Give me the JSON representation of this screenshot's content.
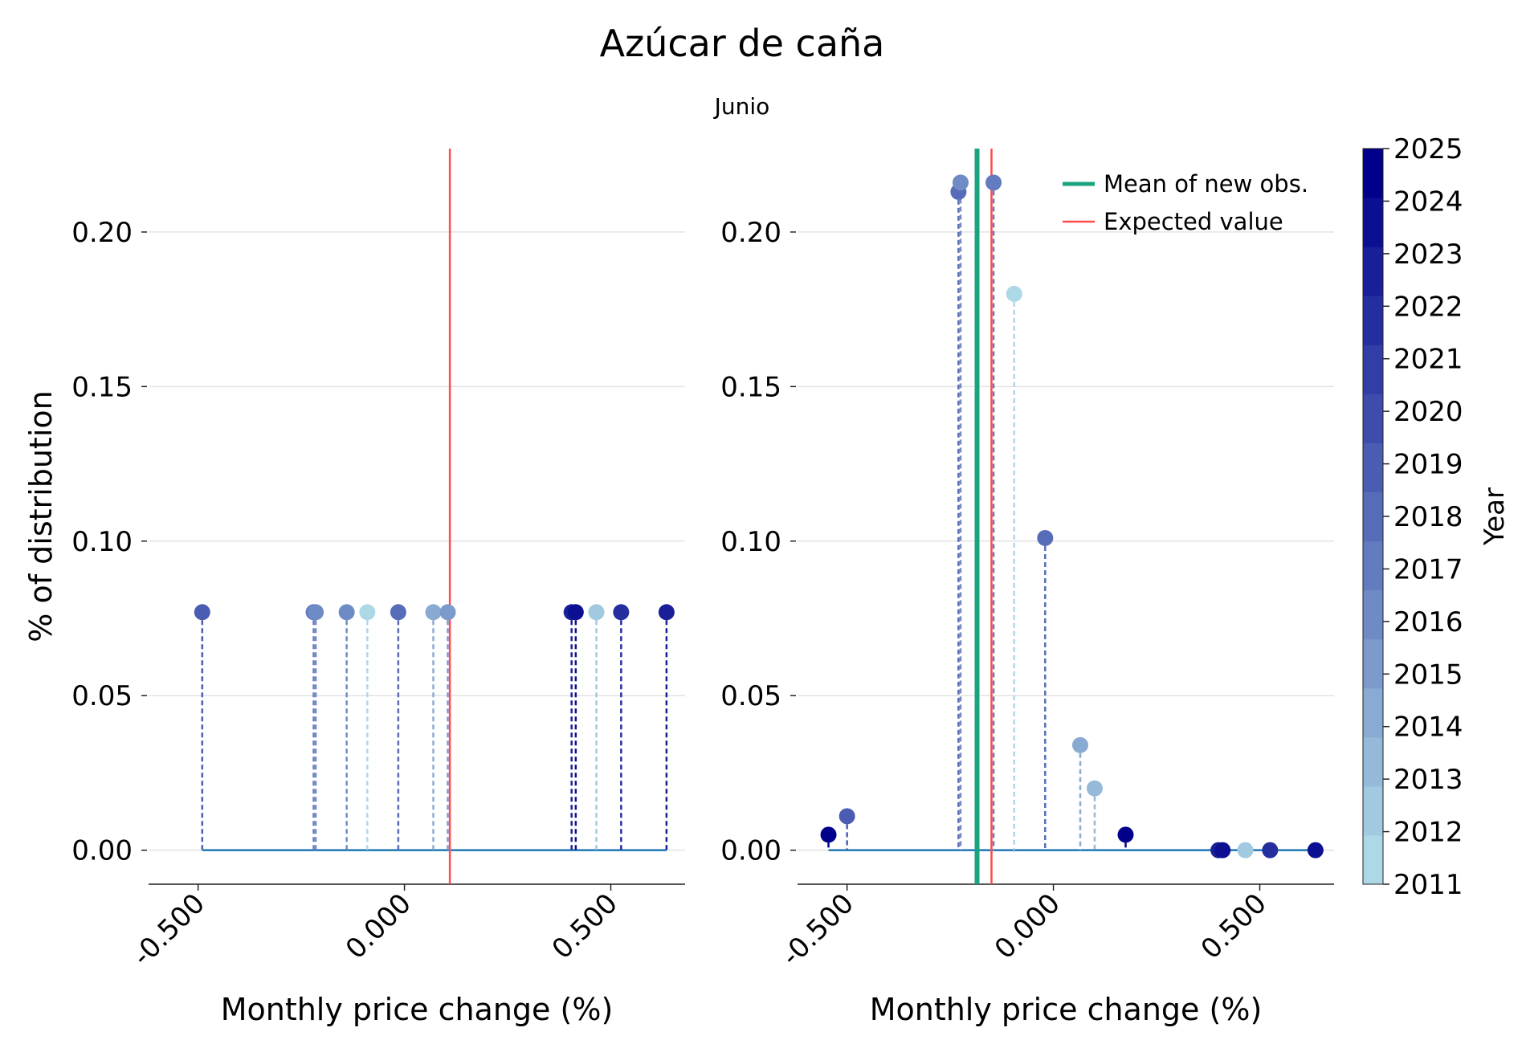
{
  "title": "Azúcar de caña",
  "subtitle": "Junio",
  "colors": {
    "baseline": "#1f77b4",
    "expected": "#ff4d4d",
    "mean": "#1aa37f",
    "grid": "#e3e3e3",
    "colormap": [
      "#add8e6",
      "#00008b"
    ]
  },
  "chart_data": [
    {
      "type": "scatter",
      "panel": "left",
      "title": "",
      "xlabel": "Monthly price change (%)",
      "ylabel": "% of distribution",
      "xlim": [
        -0.62,
        0.68
      ],
      "ylim": [
        -0.011,
        0.227
      ],
      "x_ticks": [
        -0.5,
        0.0,
        0.5
      ],
      "x_tick_labels": [
        "-0.500",
        "0.000",
        "0.500"
      ],
      "y_ticks": [
        0.0,
        0.05,
        0.1,
        0.15,
        0.2
      ],
      "y_tick_labels": [
        "0.00",
        "0.05",
        "0.10",
        "0.15",
        "0.20"
      ],
      "grid": "horizontal",
      "baseline": [
        -0.49,
        0.635
      ],
      "expected_value": 0.11,
      "points": [
        {
          "x": -0.49,
          "y": 0.077,
          "year": 2019
        },
        {
          "x": -0.22,
          "y": 0.077,
          "year": 2017
        },
        {
          "x": -0.215,
          "y": 0.077,
          "year": 2016
        },
        {
          "x": -0.14,
          "y": 0.077,
          "year": 2016
        },
        {
          "x": -0.09,
          "y": 0.077,
          "year": 2011
        },
        {
          "x": -0.015,
          "y": 0.077,
          "year": 2018
        },
        {
          "x": 0.07,
          "y": 0.077,
          "year": 2014
        },
        {
          "x": 0.105,
          "y": 0.077,
          "year": 2015
        },
        {
          "x": 0.405,
          "y": 0.077,
          "year": 2023
        },
        {
          "x": 0.415,
          "y": 0.077,
          "year": 2024
        },
        {
          "x": 0.465,
          "y": 0.077,
          "year": 2012
        },
        {
          "x": 0.525,
          "y": 0.077,
          "year": 2022
        },
        {
          "x": 0.635,
          "y": 0.077,
          "year": 2023
        }
      ]
    },
    {
      "type": "scatter",
      "panel": "right",
      "title": "",
      "xlabel": "Monthly price change (%)",
      "ylabel": "",
      "xlim": [
        -0.62,
        0.68
      ],
      "ylim": [
        -0.011,
        0.227
      ],
      "x_ticks": [
        -0.5,
        0.0,
        0.5
      ],
      "x_tick_labels": [
        "-0.500",
        "0.000",
        "0.500"
      ],
      "y_ticks": [
        0.0,
        0.05,
        0.1,
        0.15,
        0.2
      ],
      "y_tick_labels": [
        "0.00",
        "0.05",
        "0.10",
        "0.15",
        "0.20"
      ],
      "grid": "horizontal",
      "baseline": [
        -0.545,
        0.635
      ],
      "expected_value": -0.15,
      "mean_new_obs": -0.185,
      "points": [
        {
          "x": -0.545,
          "y": 0.005,
          "year": 2025
        },
        {
          "x": -0.5,
          "y": 0.011,
          "year": 2019
        },
        {
          "x": -0.23,
          "y": 0.213,
          "year": 2018
        },
        {
          "x": -0.225,
          "y": 0.216,
          "year": 2016
        },
        {
          "x": -0.145,
          "y": 0.216,
          "year": 2017
        },
        {
          "x": -0.095,
          "y": 0.18,
          "year": 2011
        },
        {
          "x": -0.02,
          "y": 0.101,
          "year": 2018
        },
        {
          "x": 0.065,
          "y": 0.034,
          "year": 2014
        },
        {
          "x": 0.1,
          "y": 0.02,
          "year": 2013
        },
        {
          "x": 0.175,
          "y": 0.005,
          "year": 2025
        },
        {
          "x": 0.4,
          "y": 0.0,
          "year": 2023
        },
        {
          "x": 0.41,
          "y": 0.0,
          "year": 2024
        },
        {
          "x": 0.465,
          "y": 0.0,
          "year": 2012
        },
        {
          "x": 0.525,
          "y": 0.0,
          "year": 2022
        },
        {
          "x": 0.635,
          "y": 0.0,
          "year": 2024
        }
      ],
      "legend": {
        "position": "top-right",
        "entries": [
          {
            "label": "Mean of new obs.",
            "kind": "mean"
          },
          {
            "label": "Expected value",
            "kind": "expected"
          }
        ]
      }
    }
  ],
  "colorbar": {
    "label": "Year",
    "min": 2011,
    "max": 2025,
    "ticks": [
      "2011",
      "2012",
      "2013",
      "2014",
      "2015",
      "2016",
      "2017",
      "2018",
      "2019",
      "2020",
      "2021",
      "2022",
      "2023",
      "2024",
      "2025"
    ]
  }
}
